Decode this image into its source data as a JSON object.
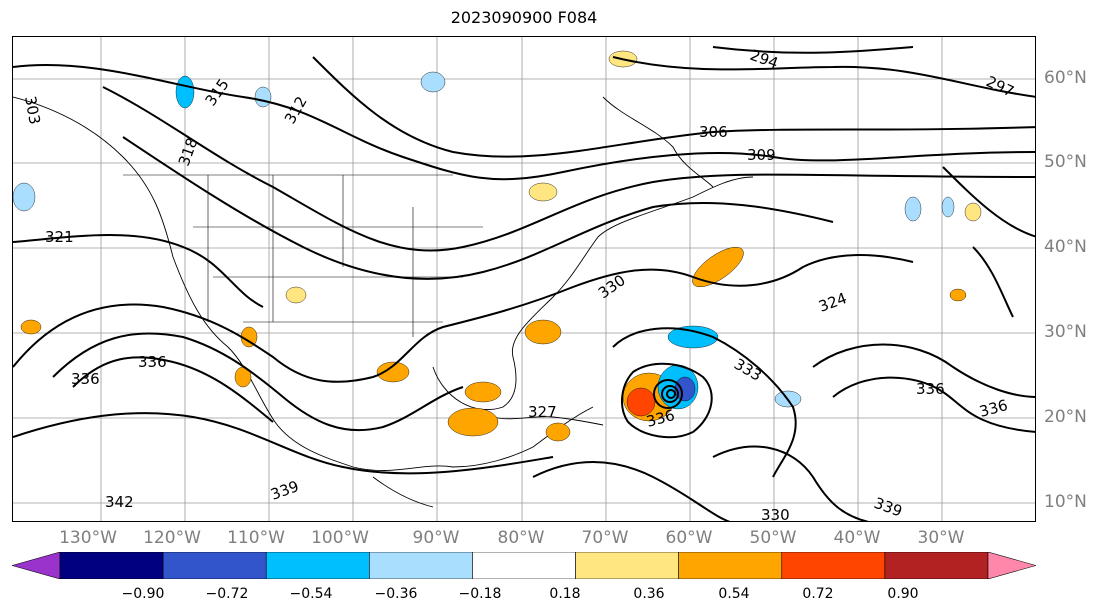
{
  "title": "2023090900 F084",
  "lon_labels": [
    "130°W",
    "120°W",
    "110°W",
    "100°W",
    "90°W",
    "80°W",
    "70°W",
    "60°W",
    "50°W",
    "40°W",
    "30°W"
  ],
  "lat_labels": [
    "60°N",
    "50°N",
    "40°N",
    "30°N",
    "20°N",
    "10°N"
  ],
  "contour_labels": [
    "294",
    "297",
    "303",
    "306",
    "309",
    "312",
    "315",
    "318",
    "321",
    "324",
    "327",
    "330",
    "333",
    "336",
    "339",
    "342"
  ],
  "colorbar": {
    "ticks": [
      "−0.90",
      "−0.72",
      "−0.54",
      "−0.36",
      "−0.18",
      "0.18",
      "0.36",
      "0.54",
      "0.72",
      "0.90"
    ],
    "colors": [
      "#9933cc",
      "#000080",
      "#3355cc",
      "#00bfff",
      "#aadeff",
      "#ffffff",
      "#ffe680",
      "#ffa500",
      "#ff4500",
      "#b22222",
      "#ff88aa"
    ]
  }
}
